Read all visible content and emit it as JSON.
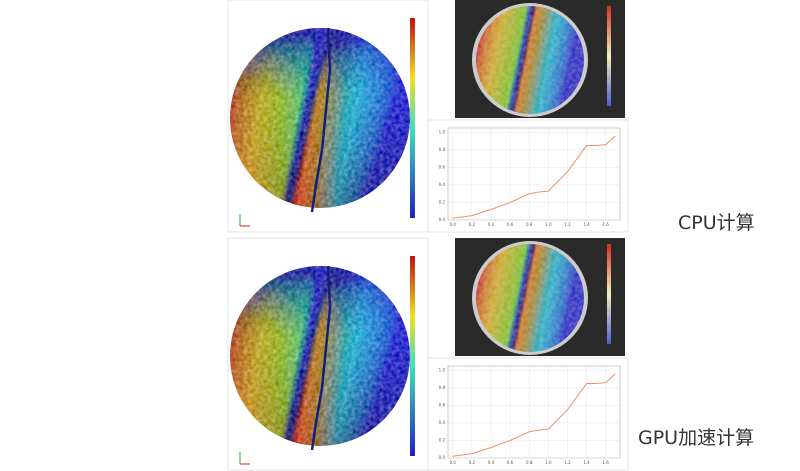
{
  "labels": [
    "CPU计算",
    "GPU加速计算"
  ],
  "chart_data": [
    {
      "type": "line",
      "x": [
        0,
        0.2,
        0.4,
        0.6,
        0.8,
        0.9,
        1.0,
        1.2,
        1.4,
        1.5,
        1.6,
        1.7
      ],
      "series": [
        {
          "color": "#e8956a",
          "values": [
            0.02,
            0.05,
            0.12,
            0.2,
            0.3,
            0.32,
            0.33,
            0.55,
            0.85,
            0.85,
            0.86,
            0.96
          ]
        }
      ],
      "xlim": [
        -0.05,
        1.75
      ],
      "ylim": [
        0,
        1.05
      ],
      "xticks": [
        {
          "value": 0,
          "label": "0.0"
        },
        {
          "value": 0.2,
          "label": "0.2"
        },
        {
          "value": 0.4,
          "label": "0.4"
        },
        {
          "value": 0.6,
          "label": "0.6"
        },
        {
          "value": 0.8,
          "label": "0.8"
        },
        {
          "value": 1,
          "label": "1.0"
        },
        {
          "value": 1.2,
          "label": "1.2"
        },
        {
          "value": 1.4,
          "label": "1.4"
        },
        {
          "value": 1.6,
          "label": "1.6"
        }
      ],
      "yticks": [
        {
          "value": 0,
          "label": "0.0"
        },
        {
          "value": 0.2,
          "label": "0.2"
        },
        {
          "value": 0.4,
          "label": "0.4"
        },
        {
          "value": 0.6,
          "label": "0.6"
        },
        {
          "value": 0.8,
          "label": "0.8"
        },
        {
          "value": 1,
          "label": "1.0"
        }
      ],
      "grid": true
    },
    {
      "type": "line",
      "x": [
        0,
        0.2,
        0.4,
        0.6,
        0.8,
        0.9,
        1.0,
        1.2,
        1.4,
        1.5,
        1.6,
        1.7
      ],
      "series": [
        {
          "color": "#e8956a",
          "values": [
            0.02,
            0.05,
            0.12,
            0.2,
            0.3,
            0.32,
            0.33,
            0.55,
            0.85,
            0.85,
            0.86,
            0.96
          ]
        }
      ],
      "xlim": [
        -0.05,
        1.75
      ],
      "ylim": [
        0,
        1.05
      ],
      "xticks": [
        {
          "value": 0,
          "label": "0.0"
        },
        {
          "value": 0.2,
          "label": "0.2"
        },
        {
          "value": 0.4,
          "label": "0.4"
        },
        {
          "value": 0.6,
          "label": "0.6"
        },
        {
          "value": 0.8,
          "label": "0.8"
        },
        {
          "value": 1,
          "label": "1.0"
        },
        {
          "value": 1.2,
          "label": "1.2"
        },
        {
          "value": 1.4,
          "label": "1.4"
        },
        {
          "value": 1.6,
          "label": "1.6"
        }
      ],
      "yticks": [
        {
          "value": 0,
          "label": "0.0"
        },
        {
          "value": 0.2,
          "label": "0.2"
        },
        {
          "value": 0.4,
          "label": "0.4"
        },
        {
          "value": 0.6,
          "label": "0.6"
        },
        {
          "value": 0.8,
          "label": "0.8"
        },
        {
          "value": 1,
          "label": "1.0"
        }
      ],
      "grid": true
    }
  ]
}
